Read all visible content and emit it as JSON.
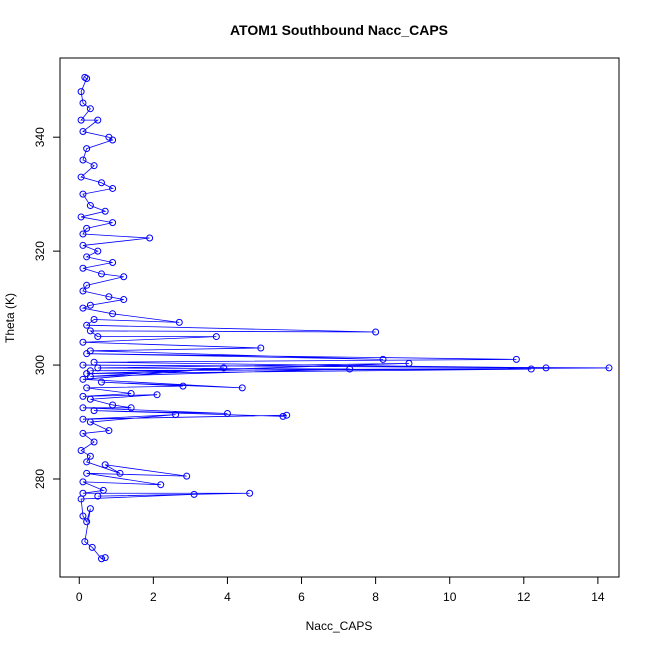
{
  "chart_data": {
    "type": "line",
    "title": "ATOM1 Southbound Nacc_CAPS",
    "x_label": "Nacc_CAPS",
    "y_label": "Theta (K)",
    "color": "#0000ff",
    "marker": "circle",
    "x": [
      0.15,
      0.2,
      0.05,
      0.1,
      0.3,
      0.05,
      0.5,
      0.1,
      0.8,
      0.9,
      0.2,
      0.1,
      0.4,
      0.05,
      0.6,
      0.9,
      0.1,
      0.3,
      0.7,
      0.05,
      0.9,
      0.2,
      0.1,
      1.9,
      0.1,
      0.5,
      0.2,
      0.9,
      0.1,
      0.6,
      1.2,
      0.2,
      0.1,
      0.8,
      1.2,
      0.3,
      0.1,
      0.9,
      2.7,
      0.4,
      0.2,
      8.0,
      0.3,
      0.5,
      3.7,
      0.1,
      4.9,
      0.3,
      8.2,
      0.2,
      11.8,
      0.4,
      12.6,
      0.1,
      14.3,
      0.3,
      12.2,
      0.2,
      8.9,
      0.5,
      7.3,
      0.3,
      3.9,
      0.1,
      4.4,
      0.6,
      2.8,
      0.2,
      1.4,
      0.1,
      2.1,
      0.3,
      0.9,
      1.4,
      0.1,
      4.0,
      0.4,
      5.5,
      5.6,
      0.1,
      2.6,
      0.3,
      0.8,
      0.1,
      0.4,
      0.05,
      0.3,
      0.2,
      1.1,
      0.7,
      2.9,
      0.2,
      2.2,
      0.1,
      0.65,
      0.1,
      4.6,
      0.5,
      3.1,
      0.05,
      0.1,
      0.2,
      0.3,
      0.15,
      0.35,
      0.6,
      0.7
    ],
    "values": [
      350.5,
      350.3,
      348,
      346,
      345,
      343,
      343,
      341,
      340,
      339.5,
      338,
      336,
      335,
      333,
      332,
      331,
      330,
      328,
      327,
      326,
      325,
      324,
      323,
      322.3,
      321,
      320,
      319,
      318,
      317,
      316,
      315.5,
      314,
      313,
      312,
      311.5,
      310.5,
      310,
      309,
      307.5,
      308,
      307,
      305.8,
      306,
      305,
      305,
      304,
      303,
      302.5,
      301,
      302,
      301,
      300.5,
      299.5,
      300,
      299.5,
      299,
      299.3,
      298.5,
      300.3,
      299.5,
      299.3,
      298,
      299.5,
      297.5,
      296,
      297,
      296.3,
      296,
      295,
      294.5,
      294.8,
      294,
      293,
      292.5,
      292.5,
      291.5,
      292,
      291,
      291.2,
      290.5,
      291.3,
      290,
      288.5,
      288,
      286.5,
      285,
      284,
      283,
      281,
      282.5,
      280.5,
      281,
      279,
      279.5,
      278,
      277.5,
      277.5,
      277,
      277.3,
      276.5,
      273.5,
      272.5,
      274.8,
      269,
      268,
      266,
      266.2
    ],
    "xlim": [
      -0.52,
      14.57
    ],
    "xticks": [
      0,
      2,
      4,
      6,
      8,
      10,
      12,
      14
    ],
    "ylim": [
      262.8,
      353.9
    ],
    "yticks": [
      280,
      300,
      320,
      340
    ]
  }
}
